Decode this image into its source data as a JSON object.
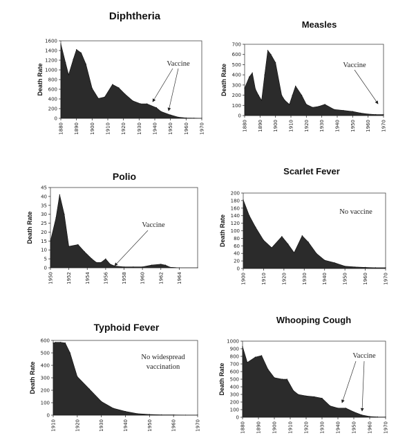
{
  "colors": {
    "area": "#2b2b2b",
    "frame": "#444444",
    "text": "#111111"
  },
  "chart_data": [
    {
      "type": "area",
      "title": "Diphtheria",
      "ylabel": "Death Rate",
      "ylim": [
        0,
        1600
      ],
      "yticks": [
        "0",
        "200",
        "400",
        "600",
        "800",
        "1000",
        "1200",
        "1400",
        "1600"
      ],
      "xlim": [
        1880,
        1970
      ],
      "xticks": [
        "1880",
        "1890",
        "1900",
        "1910",
        "1920",
        "1930",
        "1940",
        "1950",
        "1960",
        "1970"
      ],
      "x": [
        1880,
        1883,
        1885,
        1888,
        1890,
        1893,
        1896,
        1900,
        1904,
        1908,
        1913,
        1917,
        1921,
        1926,
        1931,
        1935,
        1941,
        1944,
        1950,
        1955,
        1960,
        1965,
        1970
      ],
      "values": [
        1540,
        1150,
        900,
        1220,
        1420,
        1350,
        1120,
        620,
        410,
        440,
        700,
        630,
        500,
        360,
        300,
        300,
        220,
        140,
        70,
        25,
        8,
        4,
        2
      ],
      "annotation": "Vaccine"
    },
    {
      "type": "area",
      "title": "Measles",
      "ylabel": "Death Rate",
      "ylim": [
        0,
        700
      ],
      "yticks": [
        "0",
        "100",
        "200",
        "300",
        "400",
        "500",
        "600",
        "700"
      ],
      "xlim": [
        1880,
        1970
      ],
      "xticks": [
        "1880",
        "1890",
        "1900",
        "1910",
        "1920",
        "1930",
        "1940",
        "1950",
        "1960",
        "1970"
      ],
      "x": [
        1880,
        1883,
        1885,
        1887,
        1889,
        1891,
        1893,
        1895,
        1897,
        1900,
        1904,
        1906,
        1909,
        1911,
        1913,
        1917,
        1920,
        1924,
        1928,
        1932,
        1938,
        1944,
        1950,
        1955,
        1960,
        1965,
        1970
      ],
      "values": [
        270,
        380,
        420,
        260,
        200,
        150,
        400,
        640,
        600,
        520,
        200,
        150,
        110,
        200,
        290,
        200,
        110,
        80,
        90,
        110,
        60,
        50,
        40,
        25,
        15,
        10,
        10
      ],
      "annotation": "Vaccine"
    },
    {
      "type": "area",
      "title": "Polio",
      "ylabel": "Death Rate",
      "ylim": [
        0,
        45
      ],
      "yticks": [
        "0",
        "5",
        "10",
        "15",
        "20",
        "25",
        "30",
        "35",
        "40",
        "45"
      ],
      "xlim": [
        1950,
        1966
      ],
      "xticks": [
        "1950",
        "1952",
        "1954",
        "1956",
        "1958",
        "1960",
        "1962",
        "1964"
      ],
      "x": [
        1950,
        1950.6,
        1951,
        1951.5,
        1952,
        1953,
        1953.7,
        1954.5,
        1955,
        1955.5,
        1956,
        1956.5,
        1957,
        1958,
        1959,
        1960,
        1961,
        1962,
        1962.5,
        1963,
        1964,
        1966
      ],
      "values": [
        15,
        28,
        41,
        30,
        12,
        13,
        9,
        5,
        3,
        3,
        5,
        2,
        1,
        0.5,
        0.5,
        0.5,
        1.5,
        2,
        1.5,
        0.3,
        0,
        0
      ],
      "annotation": "Vaccine"
    },
    {
      "type": "area",
      "title": "Scarlet Fever",
      "ylabel": "Death Rate",
      "ylim": [
        0,
        200
      ],
      "yticks": [
        "0",
        "20",
        "40",
        "60",
        "80",
        "100",
        "120",
        "140",
        "160",
        "180",
        "200"
      ],
      "xlim": [
        1900,
        1970
      ],
      "xticks": [
        "1900",
        "1910",
        "1920",
        "1930",
        "1940",
        "1950",
        "1960",
        "1970"
      ],
      "x": [
        1900,
        1903,
        1906,
        1910,
        1914,
        1919,
        1922,
        1925,
        1929,
        1932,
        1936,
        1940,
        1945,
        1950,
        1955,
        1960,
        1965,
        1970
      ],
      "values": [
        182,
        140,
        110,
        75,
        55,
        85,
        65,
        42,
        87,
        70,
        40,
        22,
        15,
        6,
        4,
        3,
        2,
        2
      ],
      "annotation": "No vaccine"
    },
    {
      "type": "area",
      "title": "Typhoid Fever",
      "ylabel": "Death Rate",
      "ylim": [
        0,
        600
      ],
      "yticks": [
        "0",
        "100",
        "200",
        "300",
        "400",
        "500",
        "600"
      ],
      "xlim": [
        1910,
        1970
      ],
      "xticks": [
        "1910",
        "1920",
        "1930",
        "1940",
        "1950",
        "1960",
        "1970"
      ],
      "x": [
        1910,
        1911,
        1913,
        1915,
        1917,
        1920,
        1925,
        1930,
        1935,
        1940,
        1945,
        1950,
        1955,
        1960,
        1965,
        1970
      ],
      "values": [
        580,
        585,
        585,
        580,
        500,
        310,
        210,
        110,
        55,
        30,
        12,
        6,
        3,
        2,
        1,
        1
      ],
      "annotation": "No widespread vaccination"
    },
    {
      "type": "area",
      "title": "Whooping Cough",
      "ylabel": "Death Rate",
      "ylim": [
        0,
        1000
      ],
      "yticks": [
        "0",
        "100",
        "200",
        "300",
        "400",
        "500",
        "600",
        "700",
        "800",
        "900",
        "1000"
      ],
      "xlim": [
        1880,
        1970
      ],
      "xticks": [
        "1880",
        "1890",
        "1900",
        "1910",
        "1920",
        "1930",
        "1940",
        "1950",
        "1960",
        "1970"
      ],
      "x": [
        1880,
        1883,
        1888,
        1892,
        1896,
        1900,
        1905,
        1908,
        1912,
        1915,
        1920,
        1925,
        1930,
        1935,
        1940,
        1945,
        1950,
        1955,
        1960,
        1965,
        1970
      ],
      "values": [
        930,
        720,
        790,
        810,
        630,
        520,
        500,
        500,
        350,
        300,
        280,
        270,
        250,
        150,
        120,
        120,
        70,
        30,
        10,
        5,
        3
      ],
      "annotation": "Vaccine"
    }
  ]
}
